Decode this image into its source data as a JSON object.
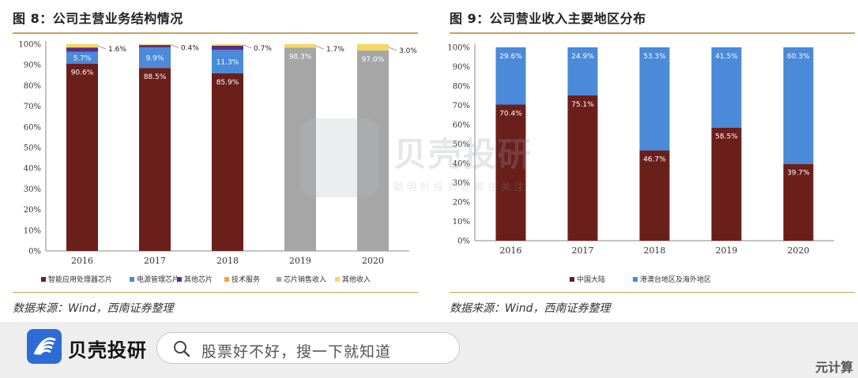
{
  "left": {
    "fig_title": "图 8：公司主营业务结构情况",
    "source": "数据来源：Wind，西南证券整理"
  },
  "right": {
    "fig_title": "图 9：公司营业收入主要地区分布",
    "source": "数据来源：Wind，西南证券整理"
  },
  "chart_data": [
    {
      "type": "bar",
      "stacked": true,
      "title": "图 8：公司主营业务结构情况",
      "categories": [
        "2016",
        "2017",
        "2018",
        "2019",
        "2020"
      ],
      "ylim": [
        0,
        100
      ],
      "y_ticks": [
        "0%",
        "10%",
        "20%",
        "30%",
        "40%",
        "50%",
        "60%",
        "70%",
        "80%",
        "90%",
        "100%"
      ],
      "legend_position": "bottom",
      "grid": false,
      "series": [
        {
          "name": "智能应用处理器芯片",
          "color": "#6b1f1b",
          "values": [
            90.6,
            88.5,
            85.9,
            0,
            0
          ],
          "labels": [
            "90.6%",
            "88.5%",
            "85.9%",
            "",
            ""
          ]
        },
        {
          "name": "电源管理芯片",
          "color": "#4a8ad8",
          "values": [
            5.7,
            9.9,
            11.3,
            0,
            0
          ],
          "labels": [
            "5.7%",
            "9.9%",
            "11.3%",
            "",
            ""
          ]
        },
        {
          "name": "其他芯片",
          "color": "#5c2d82",
          "values": [
            2.1,
            1.2,
            2.1,
            0,
            0
          ],
          "labels": [
            "",
            "",
            "",
            "",
            ""
          ]
        },
        {
          "name": "技术服务",
          "color": "#f0a830",
          "values": [
            0,
            0,
            0,
            0,
            0
          ],
          "labels": [
            "",
            "",
            "",
            "",
            ""
          ]
        },
        {
          "name": "芯片销售收入",
          "color": "#a6a6a6",
          "values": [
            0,
            0,
            0,
            98.3,
            97.0
          ],
          "labels": [
            "",
            "",
            "",
            "98.3%",
            "97.0%"
          ]
        },
        {
          "name": "其他收入",
          "color": "#f6d860",
          "values": [
            1.6,
            0.4,
            0.7,
            1.7,
            3.0
          ],
          "labels": [
            "1.6%",
            "0.4%",
            "0.7%",
            "1.7%",
            "3.0%"
          ]
        }
      ]
    },
    {
      "type": "bar",
      "stacked": true,
      "title": "图 9：公司营业收入主要地区分布",
      "categories": [
        "2016",
        "2017",
        "2018",
        "2019",
        "2020"
      ],
      "ylim": [
        0,
        100
      ],
      "y_ticks": [
        "0%",
        "10%",
        "20%",
        "30%",
        "40%",
        "50%",
        "60%",
        "70%",
        "80%",
        "90%",
        "100%"
      ],
      "legend_position": "bottom",
      "grid": false,
      "series": [
        {
          "name": "中国大陆",
          "color": "#6b1f1b",
          "values": [
            70.4,
            75.1,
            46.7,
            58.5,
            39.7
          ],
          "labels": [
            "70.4%",
            "75.1%",
            "46.7%",
            "58.5%",
            "39.7%"
          ]
        },
        {
          "name": "港澳台地区及海外地区",
          "color": "#4a8ad8",
          "values": [
            29.6,
            24.9,
            53.3,
            41.5,
            60.3
          ],
          "labels": [
            "29.6%",
            "24.9%",
            "53.3%",
            "41.5%",
            "60.3%"
          ]
        }
      ]
    }
  ],
  "watermark": {
    "text": "贝壳投研",
    "sub": "聪明的投资者都在关注"
  },
  "bottom_bar": {
    "brand": "贝壳投研",
    "search_placeholder": "股票好不好，搜一下就知道",
    "corner": "元计算"
  }
}
